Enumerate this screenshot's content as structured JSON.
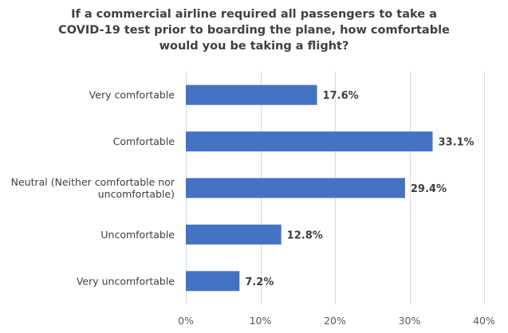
{
  "chart_data": {
    "type": "bar",
    "orientation": "horizontal",
    "title": "If a commercial airline required all passengers to take a\nCOVID-19 test prior to boarding the plane, how comfortable\nwould you be taking a flight?",
    "categories": [
      "Very comfortable",
      "Comfortable",
      "Neutral (Neither comfortable nor\nuncomfortable)",
      "Uncomfortable",
      "Very uncomfortable"
    ],
    "values": [
      17.6,
      33.1,
      29.4,
      12.8,
      7.2
    ],
    "data_labels": [
      "17.6%",
      "33.1%",
      "29.4%",
      "12.8%",
      "7.2%"
    ],
    "xlim": [
      0,
      40
    ],
    "x_ticks": [
      0,
      10,
      20,
      30,
      40
    ],
    "x_tick_labels": [
      "0%",
      "10%",
      "20%",
      "30%",
      "40%"
    ],
    "xlabel": "",
    "ylabel": "",
    "grid": "vertical",
    "legend": "none",
    "bar_color": "#4472C4",
    "grid_color": "#D9D9D9"
  }
}
